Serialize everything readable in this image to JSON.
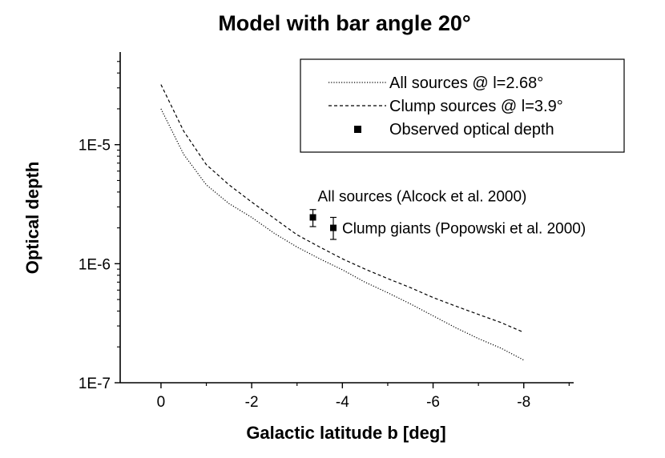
{
  "chart_data": {
    "type": "line",
    "title": "Model with bar angle 20°",
    "xlabel": "Galactic latitude b [deg]",
    "ylabel": "Optical depth",
    "xlim": [
      0.9,
      -9.1
    ],
    "ylim": [
      1e-07,
      6e-05
    ],
    "yscale": "log",
    "x_ticks": [
      0,
      -2,
      -4,
      -6,
      -8
    ],
    "x_tick_labels": [
      "0",
      "-2",
      "-4",
      "-6",
      "-8"
    ],
    "y_ticks": [
      1e-07,
      1e-06,
      1e-05
    ],
    "y_tick_labels": [
      "1E-7",
      "1E-6",
      "1E-5"
    ],
    "grid": false,
    "legend_position": "top-right",
    "series": [
      {
        "name": "All sources @ l=2.68°",
        "style": "dotted",
        "x": [
          0,
          -0.5,
          -1,
          -1.5,
          -2,
          -2.5,
          -3,
          -3.5,
          -4,
          -4.5,
          -5,
          -5.5,
          -6,
          -6.5,
          -7,
          -7.5,
          -8
        ],
        "y": [
          2e-05,
          8.3e-06,
          4.6e-06,
          3.2e-06,
          2.45e-06,
          1.8e-06,
          1.38e-06,
          1.1e-06,
          8.9e-07,
          7e-07,
          5.7e-07,
          4.6e-07,
          3.65e-07,
          2.9e-07,
          2.35e-07,
          1.95e-07,
          1.55e-07
        ]
      },
      {
        "name": "Clump sources @ l=3.9°",
        "style": "dashed",
        "x": [
          0,
          -0.5,
          -1,
          -1.5,
          -2,
          -2.5,
          -3,
          -3.5,
          -4,
          -4.5,
          -5,
          -5.5,
          -6,
          -6.5,
          -7,
          -7.5,
          -8
        ],
        "y": [
          3.2e-05,
          1.3e-05,
          6.8e-06,
          4.6e-06,
          3.3e-06,
          2.4e-06,
          1.75e-06,
          1.38e-06,
          1.1e-06,
          9e-07,
          7.5e-07,
          6.3e-07,
          5.2e-07,
          4.4e-07,
          3.75e-07,
          3.2e-07,
          2.65e-07
        ]
      },
      {
        "name": "Observed optical depth",
        "style": "marker",
        "points": [
          {
            "x": -3.35,
            "y": 2.45e-06,
            "y_low": 2.05e-06,
            "y_high": 2.85e-06,
            "label": "All sources (Alcock et al. 2000)"
          },
          {
            "x": -3.8,
            "y": 2e-06,
            "y_low": 1.6e-06,
            "y_high": 2.45e-06,
            "label": "Clump giants (Popowski et al. 2000)"
          }
        ]
      }
    ]
  }
}
